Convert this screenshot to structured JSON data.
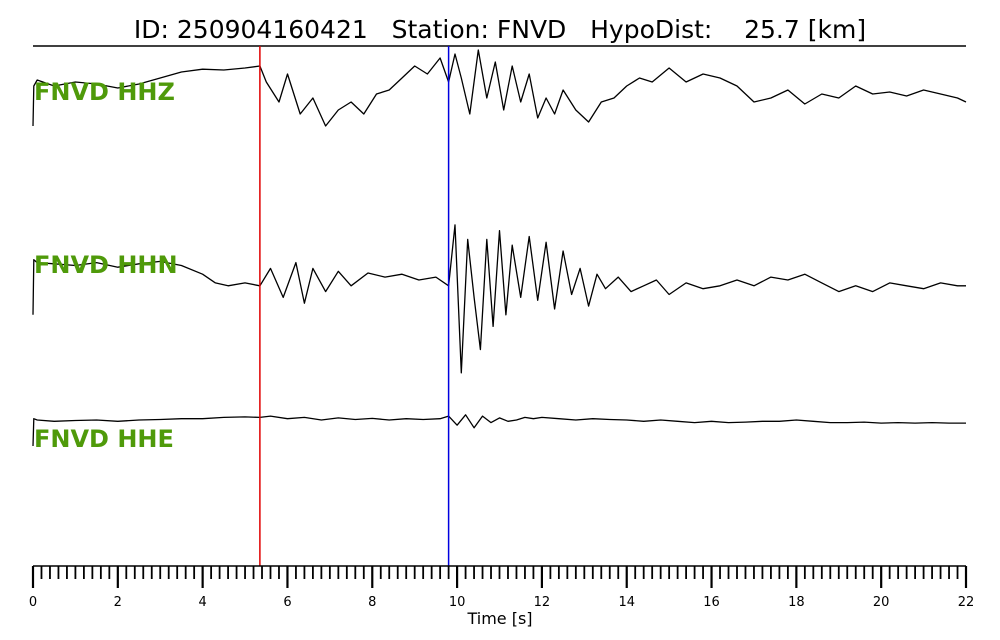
{
  "header": {
    "title": "ID: 250904160421   Station: FNVD   HypoDist:    25.7 [km]"
  },
  "chart_data": {
    "type": "line",
    "title": "ID: 250904160421   Station: FNVD   HypoDist:    25.7 [km]",
    "xlabel": "Time [s]",
    "ylabel": "",
    "xlim": [
      0,
      22
    ],
    "grid": false,
    "legend": "none",
    "x_ticks_major": [
      0,
      2,
      4,
      6,
      8,
      10,
      12,
      14,
      16,
      18,
      20,
      22
    ],
    "x_tick_labels": [
      "0",
      "2",
      "4",
      "6",
      "8",
      "10",
      "12",
      "14",
      "16",
      "18",
      "20",
      "22"
    ],
    "x_minor_step": 0.2,
    "picks": [
      {
        "label": "",
        "time": 5.35,
        "color": "#e00000"
      },
      {
        "label": "",
        "time": 9.8,
        "color": "#0000e0"
      }
    ],
    "traces": [
      {
        "label": "FNVD HHZ",
        "label_color": "#4f9a0a",
        "color": "#000000",
        "x": [
          0,
          0.02,
          0.1,
          0.5,
          1.0,
          1.5,
          2.0,
          2.5,
          3.0,
          3.5,
          4.0,
          4.5,
          5.0,
          5.35,
          5.5,
          5.8,
          6.0,
          6.3,
          6.6,
          6.9,
          7.2,
          7.5,
          7.8,
          8.1,
          8.4,
          8.7,
          9.0,
          9.3,
          9.6,
          9.8,
          9.95,
          10.1,
          10.3,
          10.5,
          10.7,
          10.9,
          11.1,
          11.3,
          11.5,
          11.7,
          11.9,
          12.1,
          12.3,
          12.5,
          12.8,
          13.1,
          13.4,
          13.7,
          14.0,
          14.3,
          14.6,
          15.0,
          15.4,
          15.8,
          16.2,
          16.6,
          17.0,
          17.4,
          17.8,
          18.2,
          18.6,
          19.0,
          19.4,
          19.8,
          20.2,
          20.6,
          21.0,
          21.4,
          21.8,
          22.0
        ],
        "y": [
          -0.9,
          0.1,
          0.25,
          0.1,
          0.2,
          0.15,
          0.05,
          0.15,
          0.3,
          0.45,
          0.52,
          0.5,
          0.55,
          0.6,
          0.2,
          -0.3,
          0.4,
          -0.6,
          -0.2,
          -0.9,
          -0.5,
          -0.3,
          -0.6,
          -0.1,
          0.0,
          0.3,
          0.6,
          0.4,
          0.8,
          0.2,
          0.9,
          0.3,
          -0.6,
          1.0,
          -0.2,
          0.7,
          -0.5,
          0.6,
          -0.3,
          0.4,
          -0.7,
          -0.2,
          -0.6,
          0.0,
          -0.5,
          -0.8,
          -0.3,
          -0.2,
          0.1,
          0.3,
          0.2,
          0.55,
          0.2,
          0.4,
          0.3,
          0.1,
          -0.3,
          -0.2,
          0.0,
          -0.35,
          -0.1,
          -0.2,
          0.1,
          -0.1,
          -0.05,
          -0.15,
          0.0,
          -0.1,
          -0.2,
          -0.3
        ]
      },
      {
        "label": "FNVD HHN",
        "label_color": "#4f9a0a",
        "color": "#000000",
        "x": [
          0,
          0.02,
          0.1,
          0.5,
          1.0,
          1.5,
          2.0,
          2.5,
          3.0,
          3.5,
          4.0,
          4.3,
          4.6,
          5.0,
          5.35,
          5.6,
          5.9,
          6.2,
          6.4,
          6.6,
          6.9,
          7.2,
          7.5,
          7.9,
          8.3,
          8.7,
          9.1,
          9.5,
          9.8,
          9.95,
          10.1,
          10.25,
          10.4,
          10.55,
          10.7,
          10.85,
          11.0,
          11.15,
          11.3,
          11.5,
          11.7,
          11.9,
          12.1,
          12.3,
          12.5,
          12.7,
          12.9,
          13.1,
          13.3,
          13.5,
          13.8,
          14.1,
          14.4,
          14.7,
          15.0,
          15.4,
          15.8,
          16.2,
          16.6,
          17.0,
          17.4,
          17.8,
          18.2,
          18.6,
          19.0,
          19.4,
          19.8,
          20.2,
          20.6,
          21.0,
          21.4,
          21.8,
          22.0
        ],
        "y": [
          -0.6,
          0.35,
          0.3,
          0.28,
          0.25,
          0.3,
          0.22,
          0.28,
          0.32,
          0.25,
          0.1,
          -0.05,
          -0.1,
          -0.05,
          -0.1,
          0.2,
          -0.3,
          0.3,
          -0.4,
          0.2,
          -0.2,
          0.15,
          -0.1,
          0.12,
          0.05,
          0.1,
          0.0,
          0.05,
          -0.1,
          0.95,
          -1.6,
          0.7,
          -0.3,
          -1.2,
          0.7,
          -0.8,
          0.85,
          -0.6,
          0.6,
          -0.3,
          0.75,
          -0.35,
          0.65,
          -0.5,
          0.5,
          -0.25,
          0.2,
          -0.45,
          0.1,
          -0.15,
          0.05,
          -0.2,
          -0.1,
          0.0,
          -0.25,
          -0.05,
          -0.15,
          -0.1,
          0.0,
          -0.1,
          0.05,
          0.0,
          0.1,
          -0.05,
          -0.2,
          -0.1,
          -0.2,
          -0.05,
          -0.1,
          -0.15,
          -0.05,
          -0.1,
          -0.1
        ]
      },
      {
        "label": "FNVD HHE",
        "label_color": "#4f9a0a",
        "color": "#000000",
        "x": [
          0,
          0.02,
          0.1,
          0.5,
          1.0,
          1.5,
          2.0,
          2.5,
          3.0,
          3.5,
          4.0,
          4.5,
          5.0,
          5.35,
          5.6,
          6.0,
          6.4,
          6.8,
          7.2,
          7.6,
          8.0,
          8.4,
          8.8,
          9.2,
          9.6,
          9.8,
          10.0,
          10.2,
          10.4,
          10.6,
          10.8,
          11.0,
          11.2,
          11.4,
          11.6,
          11.8,
          12.0,
          12.4,
          12.8,
          13.2,
          13.6,
          14.0,
          14.4,
          14.8,
          15.2,
          15.6,
          16.0,
          16.4,
          16.8,
          17.2,
          17.6,
          18.0,
          18.4,
          18.8,
          19.2,
          19.6,
          20.0,
          20.4,
          20.8,
          21.2,
          21.6,
          22.0
        ],
        "y": [
          -1.0,
          0.05,
          0.0,
          -0.05,
          -0.02,
          0.0,
          -0.05,
          0.0,
          0.02,
          0.05,
          0.05,
          0.1,
          0.12,
          0.1,
          0.15,
          0.05,
          0.1,
          0.0,
          0.08,
          0.02,
          0.06,
          0.0,
          0.05,
          0.02,
          0.05,
          0.15,
          -0.2,
          0.2,
          -0.3,
          0.15,
          -0.1,
          0.08,
          -0.05,
          0.0,
          0.1,
          0.05,
          0.1,
          0.05,
          0.0,
          0.05,
          0.02,
          0.0,
          -0.05,
          0.0,
          -0.05,
          -0.1,
          -0.05,
          -0.1,
          -0.08,
          -0.05,
          -0.05,
          0.0,
          -0.05,
          -0.1,
          -0.1,
          -0.08,
          -0.12,
          -0.1,
          -0.12,
          -0.1,
          -0.12,
          -0.12
        ]
      }
    ]
  }
}
